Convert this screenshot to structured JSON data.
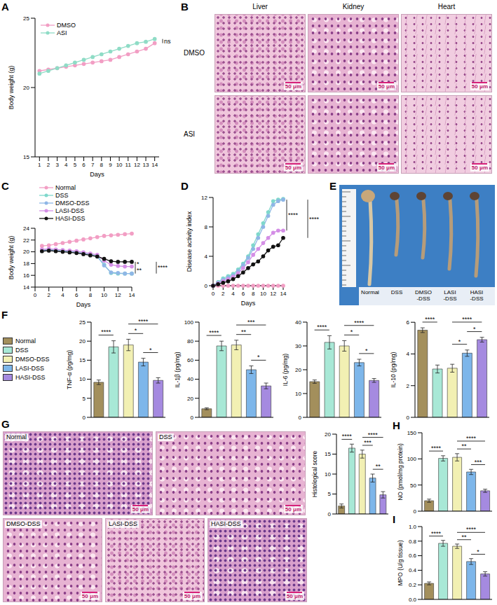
{
  "chart_data": [
    {
      "panel": "A",
      "type": "line",
      "xlabel": "Days",
      "ylabel": "Body weight (g)",
      "x": [
        1,
        2,
        3,
        4,
        5,
        6,
        7,
        8,
        9,
        10,
        11,
        12,
        13,
        14
      ],
      "xlim": [
        0.5,
        14.5
      ],
      "xticks": [
        1,
        2,
        3,
        4,
        5,
        6,
        7,
        8,
        9,
        10,
        11,
        12,
        13,
        14
      ],
      "ylim": [
        15,
        25
      ],
      "yticks": [
        15,
        20,
        25
      ],
      "legend": "upper left",
      "marker": "circle",
      "series": [
        {
          "name": "DMSO",
          "color": "#f29ec4",
          "values": [
            21.2,
            21.3,
            21.4,
            21.5,
            21.6,
            21.7,
            21.8,
            21.9,
            22.0,
            22.2,
            22.4,
            22.6,
            22.8,
            23.2
          ]
        },
        {
          "name": "ASI",
          "color": "#8fdcc6",
          "values": [
            21.0,
            21.2,
            21.4,
            21.6,
            21.8,
            22.0,
            22.2,
            22.4,
            22.6,
            22.8,
            23.0,
            23.2,
            23.3,
            23.5
          ]
        }
      ],
      "significance": [
        {
          "groups": [
            "DMSO",
            "ASI"
          ],
          "label": "ns"
        }
      ]
    },
    {
      "panel": "C",
      "type": "line",
      "xlabel": "Days",
      "ylabel": "Body weight (g)",
      "x": [
        1,
        2,
        3,
        4,
        5,
        6,
        7,
        8,
        9,
        10,
        11,
        12,
        13,
        14
      ],
      "xlim": [
        0,
        14
      ],
      "xticks": [
        0,
        2,
        4,
        6,
        8,
        10,
        12,
        14
      ],
      "ylim": [
        14,
        24
      ],
      "yticks": [
        14,
        16,
        18,
        20,
        22,
        24
      ],
      "legend": "top",
      "marker": "circle",
      "series": [
        {
          "name": "Normal",
          "color": "#f29ec4",
          "values": [
            21.0,
            21.1,
            21.3,
            21.5,
            21.7,
            21.9,
            22.1,
            22.3,
            22.5,
            22.7,
            22.8,
            22.9,
            23.0,
            23.1
          ]
        },
        {
          "name": "DSS",
          "color": "#7fd8cc",
          "values": [
            20.3,
            20.4,
            20.3,
            20.2,
            20.1,
            20.0,
            19.8,
            19.6,
            19.3,
            17.8,
            16.4,
            16.3,
            16.3,
            16.3
          ]
        },
        {
          "name": "DMSO-DSS",
          "color": "#8fb6e6",
          "values": [
            20.2,
            20.3,
            20.2,
            20.1,
            20.0,
            19.9,
            19.7,
            19.5,
            19.2,
            17.7,
            16.5,
            16.4,
            16.3,
            16.3
          ]
        },
        {
          "name": "LASI-DSS",
          "color": "#d48ee6",
          "values": [
            20.4,
            20.5,
            20.4,
            20.3,
            20.2,
            20.1,
            19.9,
            19.7,
            19.5,
            18.5,
            17.8,
            17.6,
            17.5,
            17.5
          ]
        },
        {
          "name": "HASI-DSS",
          "color": "#111111",
          "values": [
            20.1,
            20.2,
            20.1,
            20.0,
            19.9,
            19.8,
            19.6,
            19.4,
            19.2,
            18.8,
            18.4,
            18.3,
            18.3,
            18.3
          ]
        }
      ],
      "significance": [
        {
          "groups": [
            "DMSO-DSS",
            "LASI-DSS"
          ],
          "label": "**"
        },
        {
          "groups": [
            "LASI-DSS",
            "HASI-DSS"
          ],
          "label": "*"
        },
        {
          "groups": [
            "DMSO-DSS",
            "HASI-DSS"
          ],
          "label": "****"
        }
      ]
    },
    {
      "panel": "D",
      "type": "line",
      "xlabel": "Days",
      "ylabel": "Disease activity index",
      "x": [
        0,
        1,
        2,
        3,
        4,
        5,
        6,
        7,
        8,
        9,
        10,
        11,
        12,
        13,
        14
      ],
      "xlim": [
        0,
        14
      ],
      "xticks": [
        0,
        2,
        4,
        6,
        8,
        10,
        12,
        14
      ],
      "ylim": [
        0,
        12
      ],
      "yticks": [
        0,
        4,
        8,
        12
      ],
      "marker": "circle",
      "series": [
        {
          "name": "Normal",
          "color": "#f29ec4",
          "values": [
            0,
            0,
            0,
            0,
            0,
            0,
            0,
            0,
            0,
            0,
            0,
            0,
            0,
            0,
            0
          ]
        },
        {
          "name": "DSS",
          "color": "#7fd8cc",
          "values": [
            0,
            0.5,
            1.0,
            1.3,
            1.6,
            2.2,
            3.0,
            4.0,
            5.5,
            7.0,
            8.5,
            10.0,
            11.5,
            11.7,
            11.8
          ]
        },
        {
          "name": "DMSO-DSS",
          "color": "#8fb6e6",
          "values": [
            0,
            0.4,
            0.8,
            1.1,
            1.4,
            2.0,
            2.8,
            3.8,
            5.0,
            6.5,
            8.0,
            9.5,
            11.0,
            11.5,
            11.7
          ]
        },
        {
          "name": "LASI-DSS",
          "color": "#d48ee6",
          "values": [
            0,
            0.3,
            0.6,
            0.9,
            1.2,
            1.7,
            2.4,
            3.2,
            4.2,
            5.0,
            5.8,
            6.5,
            7.2,
            7.5,
            7.5
          ]
        },
        {
          "name": "HASI-DSS",
          "color": "#111111",
          "values": [
            0,
            0.2,
            0.4,
            0.6,
            0.9,
            1.3,
            1.8,
            2.4,
            2.9,
            3.3,
            4.0,
            4.8,
            5.3,
            5.5,
            6.5
          ]
        }
      ],
      "significance": [
        {
          "groups": [
            "DMSO-DSS",
            "LASI-DSS"
          ],
          "label": "****"
        },
        {
          "groups": [
            "DMSO-DSS",
            "HASI-DSS"
          ],
          "label": "****"
        }
      ]
    },
    {
      "panel": "F",
      "type": "bar",
      "categories": [
        "Normal",
        "DSS",
        "DMSO-DSS",
        "LASI-DSS",
        "HASI-DSS"
      ],
      "colors": [
        "#a38f5c",
        "#a8e8d6",
        "#f2f0b3",
        "#7db6ea",
        "#a58ae0"
      ],
      "legend": "left",
      "tick_labels": "y",
      "subplots": [
        {
          "ylabel": "TNF-α (pg/mg)",
          "values": [
            9.2,
            18.5,
            19.0,
            14.5,
            9.7
          ],
          "errors": [
            0.6,
            1.6,
            1.5,
            1.0,
            0.7
          ],
          "ylim": [
            0,
            25
          ],
          "yticks": [
            0,
            5,
            10,
            15,
            20,
            25
          ],
          "significance": [
            {
              "groups": [
                "Normal",
                "DSS"
              ],
              "label": "****"
            },
            {
              "groups": [
                "DMSO-DSS",
                "LASI-DSS"
              ],
              "label": "*"
            },
            {
              "groups": [
                "DMSO-DSS",
                "HASI-DSS"
              ],
              "label": "****"
            },
            {
              "groups": [
                "LASI-DSS",
                "HASI-DSS"
              ],
              "label": "*"
            }
          ]
        },
        {
          "ylabel": "IL-1β (pg/mg)",
          "values": [
            9,
            75,
            76,
            50,
            33
          ],
          "errors": [
            1,
            5,
            5,
            4,
            3
          ],
          "ylim": [
            0,
            100
          ],
          "yticks": [
            0,
            20,
            40,
            60,
            80,
            100
          ],
          "significance": [
            {
              "groups": [
                "Normal",
                "DSS"
              ],
              "label": "****"
            },
            {
              "groups": [
                "DMSO-DSS",
                "LASI-DSS"
              ],
              "label": "**"
            },
            {
              "groups": [
                "DMSO-DSS",
                "HASI-DSS"
              ],
              "label": "***"
            },
            {
              "groups": [
                "LASI-DSS",
                "HASI-DSS"
              ],
              "label": "*"
            }
          ]
        },
        {
          "ylabel": "IL-6 (pg/mg)",
          "values": [
            15,
            31.5,
            30,
            23,
            15.5
          ],
          "errors": [
            0.7,
            2.8,
            2.2,
            1.4,
            0.8
          ],
          "ylim": [
            0,
            40
          ],
          "yticks": [
            0,
            10,
            20,
            30,
            40
          ],
          "significance": [
            {
              "groups": [
                "Normal",
                "DSS"
              ],
              "label": "****"
            },
            {
              "groups": [
                "DMSO-DSS",
                "LASI-DSS"
              ],
              "label": "*"
            },
            {
              "groups": [
                "DMSO-DSS",
                "HASI-DSS"
              ],
              "label": "****"
            },
            {
              "groups": [
                "LASI-DSS",
                "HASI-DSS"
              ],
              "label": "*"
            }
          ]
        },
        {
          "ylabel": "IL-10 (pg/mg)",
          "values": [
            5.5,
            3.05,
            3.1,
            4.05,
            4.9
          ],
          "errors": [
            0.15,
            0.25,
            0.25,
            0.2,
            0.15
          ],
          "ylim": [
            0,
            6
          ],
          "yticks": [
            0,
            2,
            4,
            6
          ],
          "significance": [
            {
              "groups": [
                "Normal",
                "DSS"
              ],
              "label": "****"
            },
            {
              "groups": [
                "DMSO-DSS",
                "LASI-DSS"
              ],
              "label": "*"
            },
            {
              "groups": [
                "DMSO-DSS",
                "HASI-DSS"
              ],
              "label": "****"
            },
            {
              "groups": [
                "LASI-DSS",
                "HASI-DSS"
              ],
              "label": "*"
            }
          ]
        }
      ]
    },
    {
      "type": "bar",
      "ylabel": "Histological score",
      "categories": [
        "Normal",
        "DSS",
        "DMSO-DSS",
        "LASI-DSS",
        "HASI-DSS"
      ],
      "colors": [
        "#a38f5c",
        "#a8e8d6",
        "#f2f0b3",
        "#7db6ea",
        "#a58ae0"
      ],
      "tick_labels": "y",
      "values": [
        2,
        16.5,
        15,
        9,
        4.8
      ],
      "errors": [
        0.5,
        1,
        1,
        1,
        0.8
      ],
      "ylim": [
        0,
        20
      ],
      "yticks": [
        0,
        5,
        10,
        15,
        20
      ],
      "significance": [
        {
          "groups": [
            "Normal",
            "DSS"
          ],
          "label": "****"
        },
        {
          "groups": [
            "DMSO-DSS",
            "LASI-DSS"
          ],
          "label": "***"
        },
        {
          "groups": [
            "DMSO-DSS",
            "HASI-DSS"
          ],
          "label": "****"
        },
        {
          "groups": [
            "LASI-DSS",
            "HASI-DSS"
          ],
          "label": "**"
        }
      ]
    },
    {
      "panel": "H",
      "type": "bar",
      "ylabel": "NO (pmol/mg protein)",
      "categories": [
        "Normal",
        "DSS",
        "DMSO-DSS",
        "LASI-DSS",
        "HASI-DSS"
      ],
      "colors": [
        "#a38f5c",
        "#a8e8d6",
        "#f2f0b3",
        "#7db6ea",
        "#a58ae0"
      ],
      "tick_labels": "y",
      "values": [
        20,
        101,
        103,
        75,
        39
      ],
      "errors": [
        3,
        5,
        7,
        5,
        3
      ],
      "ylim": [
        0,
        150
      ],
      "yticks": [
        0,
        50,
        100,
        150
      ],
      "significance": [
        {
          "groups": [
            "Normal",
            "DSS"
          ],
          "label": "****"
        },
        {
          "groups": [
            "DMSO-DSS",
            "LASI-DSS"
          ],
          "label": "**"
        },
        {
          "groups": [
            "DMSO-DSS",
            "HASI-DSS"
          ],
          "label": "****"
        },
        {
          "groups": [
            "LASI-DSS",
            "HASI-DSS"
          ],
          "label": "***"
        }
      ]
    },
    {
      "panel": "I",
      "type": "bar",
      "ylabel": "MPO (U/g tissue)",
      "categories": [
        "Normal",
        "DSS",
        "DMSO-DSS",
        "LASI-DSS",
        "HASI-DSS"
      ],
      "colors": [
        "#a38f5c",
        "#a8e8d6",
        "#f2f0b3",
        "#7db6ea",
        "#a58ae0"
      ],
      "tick_labels": "y",
      "values": [
        0.22,
        0.77,
        0.73,
        0.52,
        0.35
      ],
      "errors": [
        0.02,
        0.04,
        0.03,
        0.04,
        0.03
      ],
      "ylim": [
        0,
        1
      ],
      "yticks": [
        {
          "value": 0,
          "label": "0.0"
        },
        0.2,
        0.4,
        0.6,
        0.8,
        {
          "value": 1,
          "label": "1.0"
        }
      ],
      "significance": [
        {
          "groups": [
            "Normal",
            "DSS"
          ],
          "label": "****"
        },
        {
          "groups": [
            "DMSO-DSS",
            "LASI-DSS"
          ],
          "label": "**"
        },
        {
          "groups": [
            "DMSO-DSS",
            "HASI-DSS"
          ],
          "label": "****"
        },
        {
          "groups": [
            "LASI-DSS",
            "HASI-DSS"
          ],
          "label": "*"
        }
      ]
    }
  ],
  "images": {
    "B": {
      "panel": "B",
      "columns": [
        "Liver",
        "Kidney",
        "Heart"
      ],
      "rows": [
        "DMSO",
        "ASI"
      ],
      "scale_bar": "50 μm"
    },
    "E": {
      "panel": "E",
      "groups": [
        "Normal",
        "DSS",
        "DMSO-DSS",
        "LASI-DSS",
        "HASI-DSS"
      ]
    },
    "G": {
      "panel": "G",
      "groups": [
        "Normal",
        "DSS",
        "DMSO-DSS",
        "LASI-DSS",
        "HASI-DSS"
      ],
      "scale_bar": "50 μm"
    }
  }
}
